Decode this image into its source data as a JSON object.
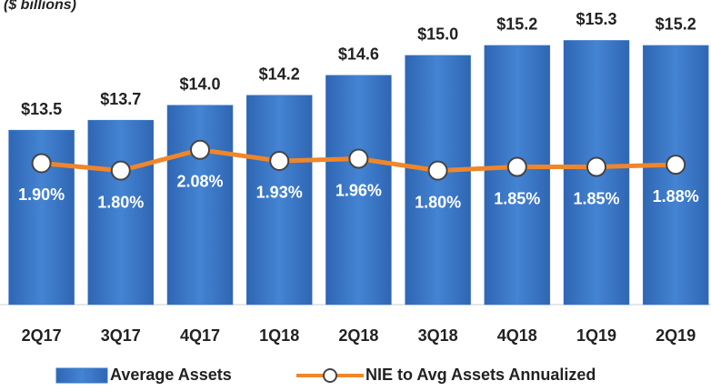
{
  "chart_data": {
    "type": "bar-line",
    "subtitle": "($ billions)",
    "categories": [
      "2Q17",
      "3Q17",
      "4Q17",
      "1Q18",
      "2Q18",
      "3Q18",
      "4Q18",
      "1Q19",
      "2Q19"
    ],
    "series": [
      {
        "name": "Average Assets",
        "type": "bar",
        "color": "#3a78c9",
        "values": [
          13.5,
          13.7,
          14.0,
          14.2,
          14.6,
          15.0,
          15.2,
          15.3,
          15.2
        ],
        "value_labels": [
          "$13.5",
          "$13.7",
          "$14.0",
          "$14.2",
          "$14.6",
          "$15.0",
          "$15.2",
          "$15.3",
          "$15.2"
        ]
      },
      {
        "name": "NIE to Avg Assets Annualized",
        "type": "line",
        "axis": "y2",
        "color": "#f0862a",
        "values": [
          1.9,
          1.8,
          2.08,
          1.93,
          1.96,
          1.8,
          1.85,
          1.85,
          1.88
        ],
        "value_labels": [
          "1.90%",
          "1.80%",
          "2.08%",
          "1.93%",
          "1.96%",
          "1.80%",
          "1.85%",
          "1.85%",
          "1.88%"
        ]
      }
    ],
    "ylim": [
      10,
      15.6
    ],
    "y2lim": [
      0,
      3.75
    ],
    "legend": "bottom"
  }
}
